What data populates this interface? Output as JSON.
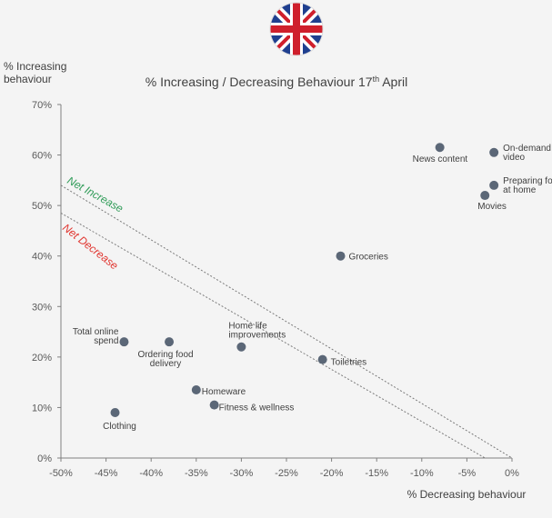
{
  "chart_data": {
    "type": "scatter",
    "title": "% Increasing / Decreasing Behaviour 17",
    "title_sup": "th",
    "title_suffix": " April",
    "xlabel": "% Decreasing behaviour",
    "ylabel_lines": [
      "% Increasing",
      "behaviour"
    ],
    "xlim": [
      -50,
      0
    ],
    "ylim": [
      0,
      70
    ],
    "x_ticks": [
      -50,
      -45,
      -40,
      -35,
      -30,
      -25,
      -20,
      -15,
      -10,
      -5,
      0
    ],
    "x_tick_labels": [
      "-50%",
      "-45%",
      "-40%",
      "-35%",
      "-30%",
      "-25%",
      "-20%",
      "-15%",
      "-10%",
      "-5%",
      "0%"
    ],
    "y_ticks": [
      0,
      10,
      20,
      30,
      40,
      50,
      60,
      70
    ],
    "y_tick_labels": [
      "0%",
      "10%",
      "20%",
      "30%",
      "40%",
      "50%",
      "60%",
      "70%"
    ],
    "grid": false,
    "points": [
      {
        "label": "News content",
        "x": -8,
        "y": 61.5
      },
      {
        "label": "On-demand video",
        "x": -2,
        "y": 60.5
      },
      {
        "label": "Preparing food at home",
        "x": -2,
        "y": 54
      },
      {
        "label": "Movies",
        "x": -3,
        "y": 52
      },
      {
        "label": "Groceries",
        "x": -19,
        "y": 40
      },
      {
        "label": "Toiletries",
        "x": -21,
        "y": 19.5
      },
      {
        "label": "Home life improvements",
        "x": -30,
        "y": 22
      },
      {
        "label": "Total online spend",
        "x": -43,
        "y": 23
      },
      {
        "label": "Ordering food delivery",
        "x": -38,
        "y": 23
      },
      {
        "label": "Homeware",
        "x": -35,
        "y": 13.5
      },
      {
        "label": "Fitness & wellness",
        "x": -33,
        "y": 10.5
      },
      {
        "label": "Clothing",
        "x": -44,
        "y": 9
      }
    ],
    "reference_lines": [
      {
        "name": "Net Increase",
        "x0": -50,
        "y0": 54,
        "x1": 0,
        "y1": 0,
        "color": "#2e9b57"
      },
      {
        "name": "Net Decrease",
        "x0": -50,
        "y0": 48.5,
        "x1": -3,
        "y1": 0,
        "color": "#e0342e"
      }
    ]
  },
  "colors": {
    "point": "#5b6777",
    "axis": "#808080",
    "flag_blue": "#1f3f8f",
    "flag_red": "#cf1f2c"
  },
  "flag": {
    "name": "uk-flag-icon"
  }
}
